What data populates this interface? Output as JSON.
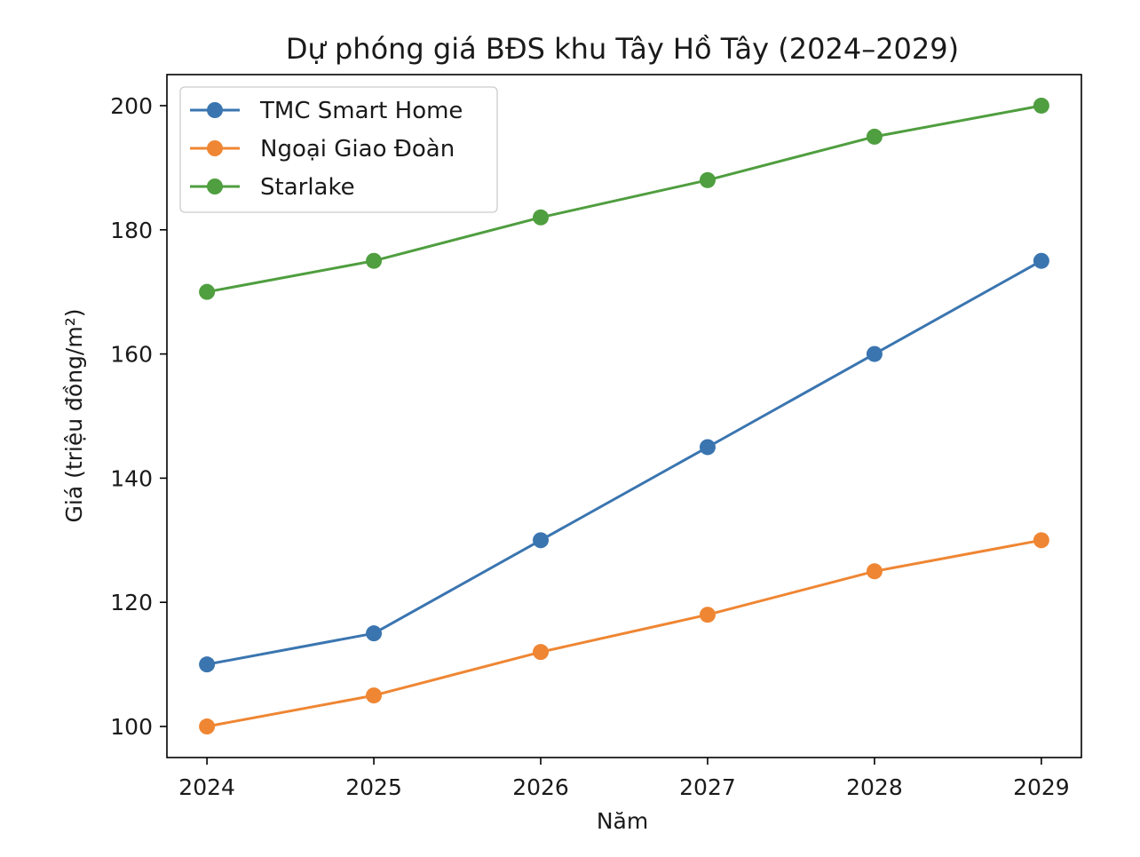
{
  "chart_data": {
    "type": "line",
    "title": "Dự phóng giá BĐS khu Tây Hồ Tây (2024–2029)",
    "xlabel": "Năm",
    "ylabel": "Giá (triệu đồng/m²)",
    "x": [
      2024,
      2025,
      2026,
      2027,
      2028,
      2029
    ],
    "x_tick_labels": [
      "2024",
      "2025",
      "2026",
      "2027",
      "2028",
      "2029"
    ],
    "y_ticks": [
      100,
      120,
      140,
      160,
      180,
      200
    ],
    "y_tick_labels": [
      "100",
      "120",
      "140",
      "160",
      "180",
      "200"
    ],
    "ylim": [
      95,
      205
    ],
    "xlim": [
      2023.76,
      2029.24
    ],
    "grid": false,
    "legend_position": "upper-left",
    "series": [
      {
        "name": "TMC Smart Home",
        "color": "#3a75b0",
        "values": [
          110,
          115,
          130,
          145,
          160,
          175
        ]
      },
      {
        "name": "Ngoại Giao Đoàn",
        "color": "#ef8633",
        "values": [
          100,
          105,
          112,
          118,
          125,
          130
        ]
      },
      {
        "name": "Starlake",
        "color": "#4f9e3f",
        "values": [
          170,
          175,
          182,
          188,
          195,
          200
        ]
      }
    ]
  }
}
